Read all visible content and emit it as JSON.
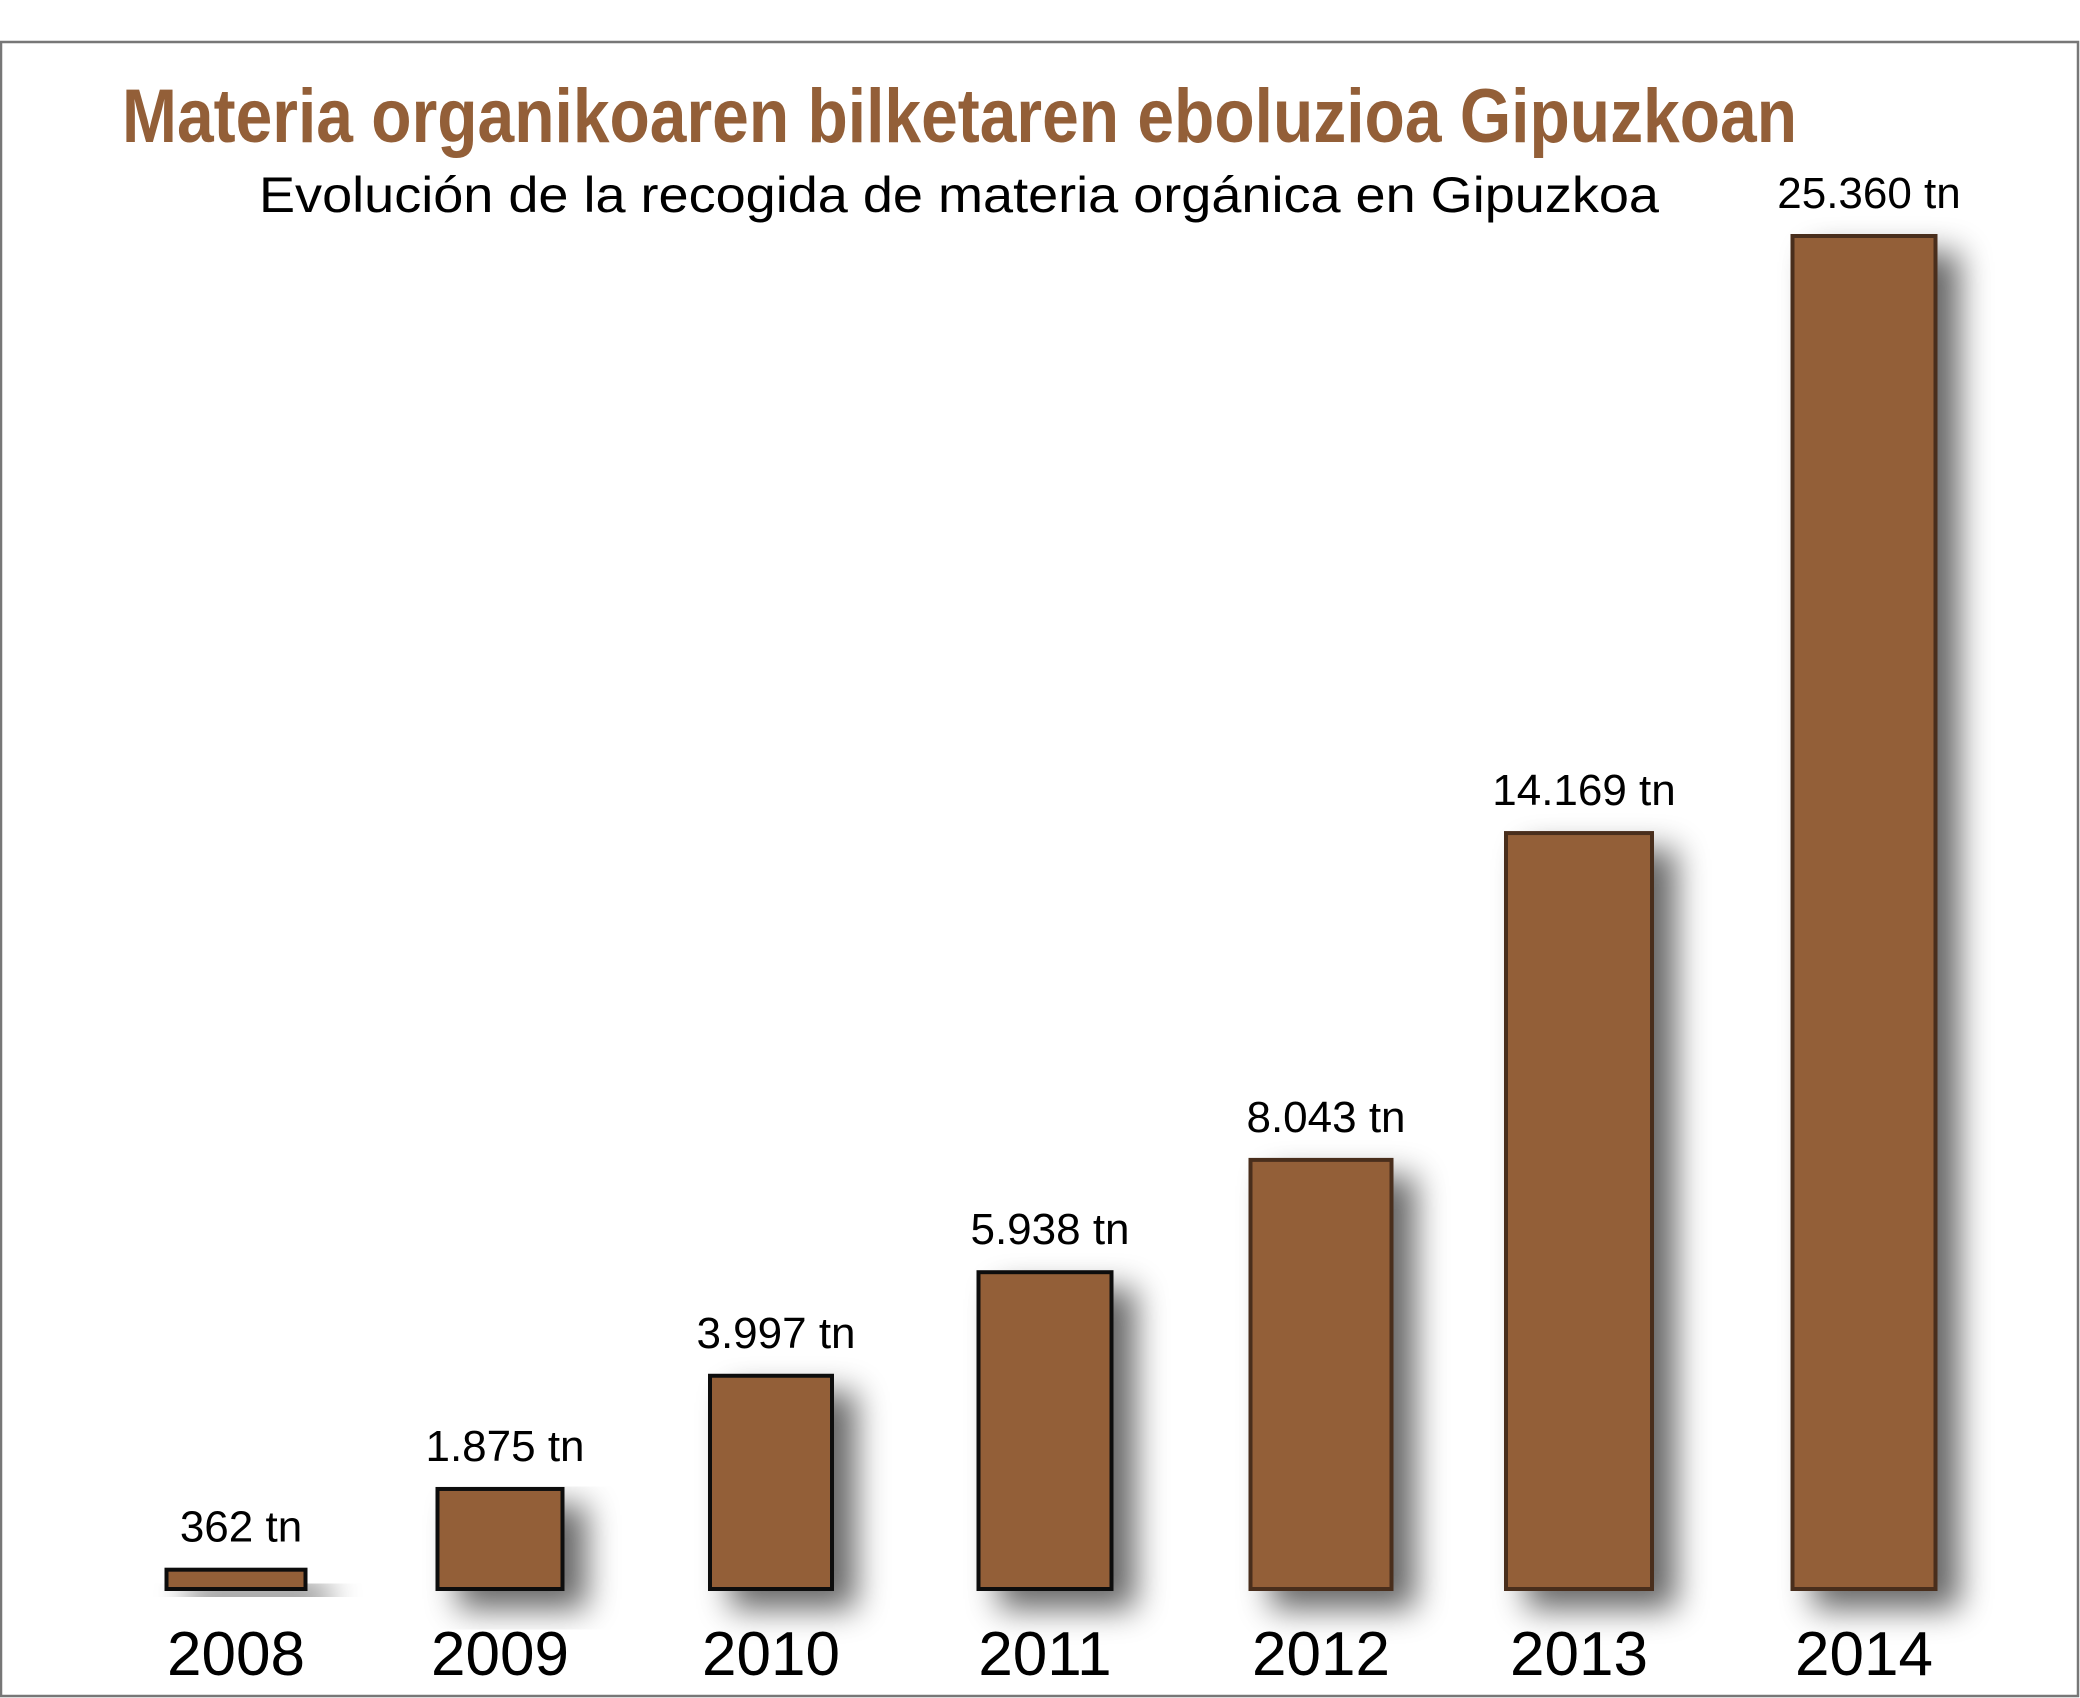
{
  "chart_data": {
    "type": "bar",
    "title": "Materia organikoaren bilketaren eboluzioa Gipuzkoan",
    "subtitle": "Evolución de la recogida de materia orgánica en Gipuzkoa",
    "categories": [
      "2008",
      "2009",
      "2010",
      "2011",
      "2012",
      "2013",
      "2014"
    ],
    "values": [
      362,
      1875,
      3997,
      5938,
      8043,
      14169,
      25360
    ],
    "value_labels": [
      "362 tn",
      "1.875 tn",
      "3.997 tn",
      "5.938 tn",
      "8.043 tn",
      "14.169 tn",
      "25.360 tn"
    ],
    "unit": "tn",
    "xlabel": "",
    "ylabel": "",
    "ylim": [
      0,
      25360
    ],
    "grid": false,
    "legend": "none",
    "colors": {
      "bar_fill": "#935f38",
      "bar_stroke_dark": "#111111",
      "bar_stroke_brown": "#4a2e1f",
      "title": "#935f38"
    }
  }
}
